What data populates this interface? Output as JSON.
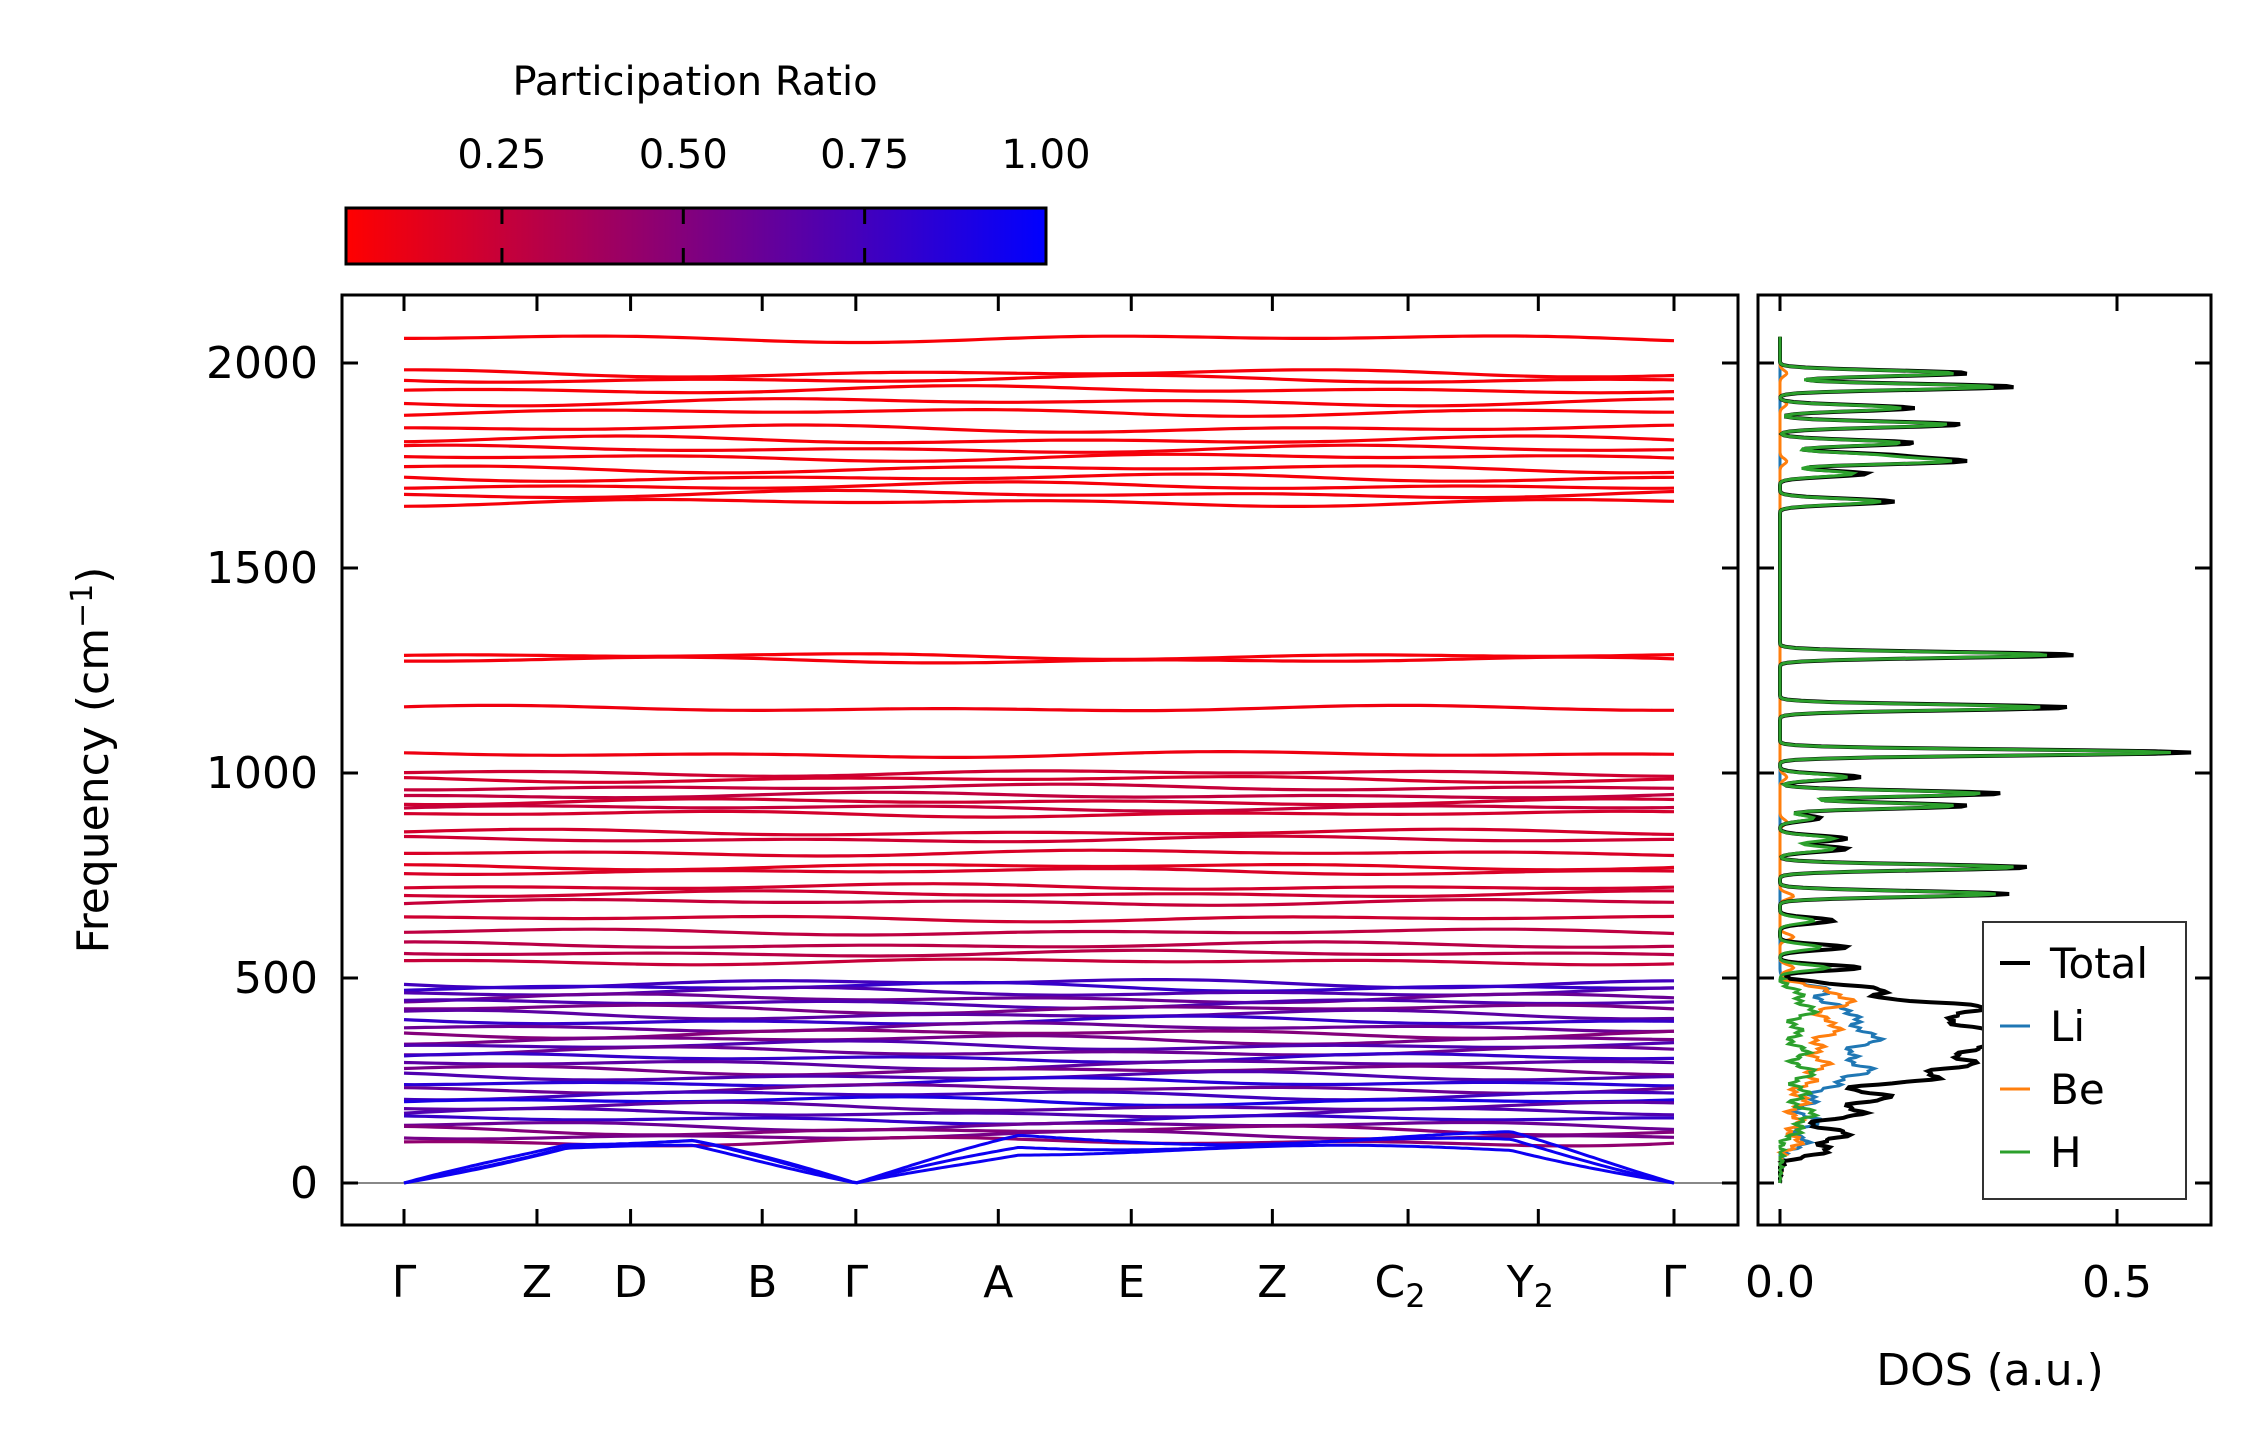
{
  "chart_data": [
    {
      "type": "line",
      "title": "",
      "xlabel": "",
      "ylabel": "Frequency (cm",
      "ylabel_sup": "−1",
      "ylabel_end": ")",
      "ylim": [
        -100,
        2170
      ],
      "yticks": [
        0,
        500,
        1000,
        1500,
        2000
      ],
      "kpoints": [
        {
          "label": "Γ",
          "sub": ""
        },
        {
          "label": "Z",
          "sub": ""
        },
        {
          "label": "D",
          "sub": ""
        },
        {
          "label": "B",
          "sub": ""
        },
        {
          "label": "Γ",
          "sub": ""
        },
        {
          "label": "A",
          "sub": ""
        },
        {
          "label": "E",
          "sub": ""
        },
        {
          "label": "Z",
          "sub": ""
        },
        {
          "label": "C",
          "sub": "2"
        },
        {
          "label": "Y",
          "sub": "2"
        },
        {
          "label": "Γ",
          "sub": ""
        }
      ],
      "kpath_distance": [
        0,
        0.98,
        1.67,
        2.64,
        3.33,
        4.38,
        5.36,
        6.4,
        7.4,
        8.36,
        9.36
      ],
      "colorbar": {
        "title": "Participation Ratio",
        "range": [
          0.035,
          1.0
        ],
        "ticks": [
          0.25,
          0.5,
          0.75,
          1.0
        ],
        "tick_labels": [
          "0.25",
          "0.50",
          "0.75",
          "1.00"
        ],
        "color_low": "#ff0000",
        "color_high": "#0000ff"
      },
      "bands": [
        [
          2060,
          0.06
        ],
        [
          1975,
          0.07
        ],
        [
          1960,
          0.07
        ],
        [
          1935,
          0.06
        ],
        [
          1905,
          0.07
        ],
        [
          1880,
          0.06
        ],
        [
          1840,
          0.07
        ],
        [
          1812,
          0.07
        ],
        [
          1790,
          0.08
        ],
        [
          1770,
          0.07
        ],
        [
          1742,
          0.07
        ],
        [
          1720,
          0.07
        ],
        [
          1700,
          0.07
        ],
        [
          1680,
          0.08
        ],
        [
          1660,
          0.07
        ],
        [
          1285,
          0.07
        ],
        [
          1275,
          0.08
        ],
        [
          1157,
          0.09
        ],
        [
          1045,
          0.1
        ],
        [
          1000,
          0.22
        ],
        [
          985,
          0.2
        ],
        [
          965,
          0.25
        ],
        [
          945,
          0.27
        ],
        [
          930,
          0.22
        ],
        [
          915,
          0.25
        ],
        [
          900,
          0.2
        ],
        [
          855,
          0.2
        ],
        [
          838,
          0.22
        ],
        [
          805,
          0.18
        ],
        [
          772,
          0.15
        ],
        [
          760,
          0.18
        ],
        [
          722,
          0.2
        ],
        [
          705,
          0.22
        ],
        [
          685,
          0.25
        ],
        [
          645,
          0.22
        ],
        [
          612,
          0.28
        ],
        [
          580,
          0.3
        ],
        [
          560,
          0.3
        ],
        [
          540,
          0.25
        ],
        [
          488,
          0.75
        ],
        [
          478,
          0.8
        ],
        [
          465,
          0.7
        ],
        [
          450,
          0.6
        ],
        [
          438,
          0.7
        ],
        [
          425,
          0.55
        ],
        [
          410,
          0.65
        ],
        [
          395,
          0.8
        ],
        [
          380,
          0.6
        ],
        [
          365,
          0.5
        ],
        [
          350,
          0.55
        ],
        [
          335,
          0.7
        ],
        [
          320,
          0.6
        ],
        [
          305,
          0.8
        ],
        [
          290,
          0.65
        ],
        [
          275,
          0.55
        ],
        [
          260,
          0.7
        ],
        [
          245,
          0.85
        ],
        [
          230,
          0.6
        ],
        [
          215,
          0.75
        ],
        [
          200,
          0.9
        ],
        [
          185,
          0.65
        ],
        [
          170,
          0.7
        ],
        [
          155,
          0.8
        ],
        [
          140,
          0.6
        ],
        [
          128,
          0.5
        ],
        [
          115,
          0.55
        ],
        [
          100,
          0.45
        ]
      ],
      "acoustic_max": [
        110,
        95,
        80
      ],
      "zero_line": 0
    },
    {
      "type": "line",
      "xlabel": "DOS (a.u.)",
      "xlim": [
        -0.03,
        0.64
      ],
      "xticks": [
        0.0,
        0.5
      ],
      "xtick_labels": [
        "0.0",
        "0.5"
      ],
      "legend_position": "lower-right",
      "series": [
        {
          "name": "Total",
          "color": "#000000",
          "peaks": [
            [
              1975,
              0.28
            ],
            [
              1942,
              0.35
            ],
            [
              1890,
              0.2
            ],
            [
              1850,
              0.27
            ],
            [
              1805,
              0.2
            ],
            [
              1775,
              0.15
            ],
            [
              1760,
              0.26
            ],
            [
              1730,
              0.13
            ],
            [
              1662,
              0.17
            ],
            [
              1288,
              0.44
            ],
            [
              1160,
              0.43
            ],
            [
              1050,
              0.61
            ],
            [
              990,
              0.12
            ],
            [
              950,
              0.33
            ],
            [
              920,
              0.28
            ],
            [
              890,
              0.06
            ],
            [
              840,
              0.1
            ],
            [
              815,
              0.1
            ],
            [
              770,
              0.37
            ],
            [
              705,
              0.34
            ],
            [
              640,
              0.08
            ],
            [
              575,
              0.1
            ],
            [
              525,
              0.12
            ],
            [
              470,
              0.15
            ],
            [
              430,
              0.28
            ],
            [
              400,
              0.2
            ],
            [
              370,
              0.26
            ],
            [
              345,
              0.24
            ],
            [
              320,
              0.2
            ],
            [
              290,
              0.26
            ],
            [
              255,
              0.22
            ],
            [
              210,
              0.16
            ],
            [
              170,
              0.12
            ],
            [
              120,
              0.1
            ],
            [
              80,
              0.07
            ]
          ]
        },
        {
          "name": "Li",
          "color": "#1f77b4",
          "peaks": [
            [
              470,
              0.07
            ],
            [
              430,
              0.08
            ],
            [
              400,
              0.1
            ],
            [
              370,
              0.09
            ],
            [
              345,
              0.12
            ],
            [
              310,
              0.1
            ],
            [
              275,
              0.13
            ],
            [
              240,
              0.08
            ],
            [
              200,
              0.05
            ],
            [
              150,
              0.06
            ],
            [
              100,
              0.04
            ]
          ]
        },
        {
          "name": "Be",
          "color": "#ff7f0e",
          "peaks": [
            [
              1975,
              0.01
            ],
            [
              1900,
              0.01
            ],
            [
              1760,
              0.01
            ],
            [
              990,
              0.01
            ],
            [
              880,
              0.01
            ],
            [
              700,
              0.02
            ],
            [
              600,
              0.02
            ],
            [
              525,
              0.02
            ],
            [
              470,
              0.06
            ],
            [
              440,
              0.1
            ],
            [
              400,
              0.06
            ],
            [
              370,
              0.08
            ],
            [
              330,
              0.06
            ],
            [
              290,
              0.07
            ],
            [
              250,
              0.05
            ],
            [
              200,
              0.04
            ],
            [
              150,
              0.03
            ],
            [
              100,
              0.03
            ]
          ]
        },
        {
          "name": "H",
          "color": "#2ca02c",
          "peaks": [
            [
              1975,
              0.26
            ],
            [
              1942,
              0.32
            ],
            [
              1890,
              0.18
            ],
            [
              1850,
              0.25
            ],
            [
              1805,
              0.18
            ],
            [
              1775,
              0.13
            ],
            [
              1760,
              0.24
            ],
            [
              1730,
              0.11
            ],
            [
              1662,
              0.15
            ],
            [
              1288,
              0.4
            ],
            [
              1160,
              0.39
            ],
            [
              1050,
              0.58
            ],
            [
              990,
              0.1
            ],
            [
              950,
              0.3
            ],
            [
              920,
              0.26
            ],
            [
              890,
              0.05
            ],
            [
              840,
              0.08
            ],
            [
              815,
              0.08
            ],
            [
              770,
              0.35
            ],
            [
              705,
              0.32
            ],
            [
              640,
              0.05
            ],
            [
              575,
              0.06
            ],
            [
              525,
              0.07
            ],
            [
              460,
              0.03
            ],
            [
              420,
              0.05
            ],
            [
              370,
              0.03
            ],
            [
              320,
              0.04
            ],
            [
              270,
              0.05
            ],
            [
              220,
              0.04
            ],
            [
              170,
              0.05
            ],
            [
              130,
              0.03
            ]
          ]
        }
      ]
    }
  ]
}
